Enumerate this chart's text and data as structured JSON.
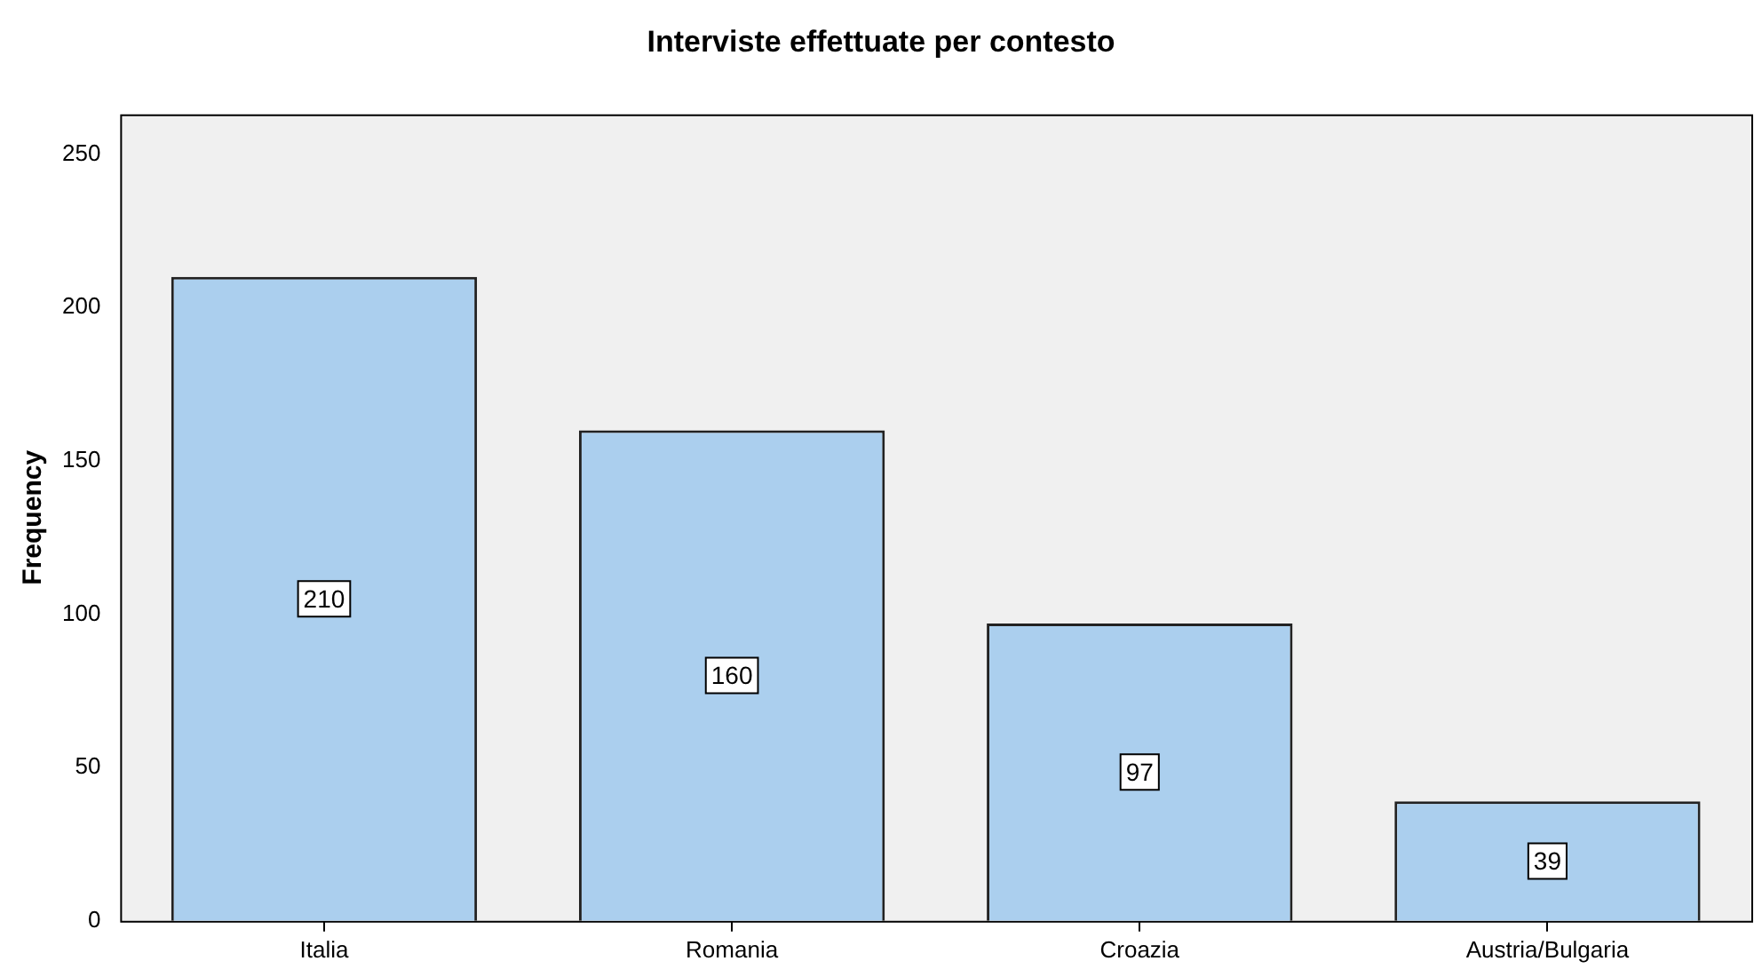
{
  "chart_data": {
    "type": "bar",
    "title": "Interviste effettuate per contesto",
    "ylabel": "Frequency",
    "categories": [
      "Italia",
      "Romania",
      "Croazia",
      "Austria/Bulgaria"
    ],
    "values": [
      210,
      160,
      97,
      39
    ],
    "color": "#abcfee",
    "ylim": [
      0,
      263
    ],
    "yticks": [
      0,
      50,
      100,
      150,
      200,
      250
    ],
    "grid": false,
    "data_labels": true
  }
}
